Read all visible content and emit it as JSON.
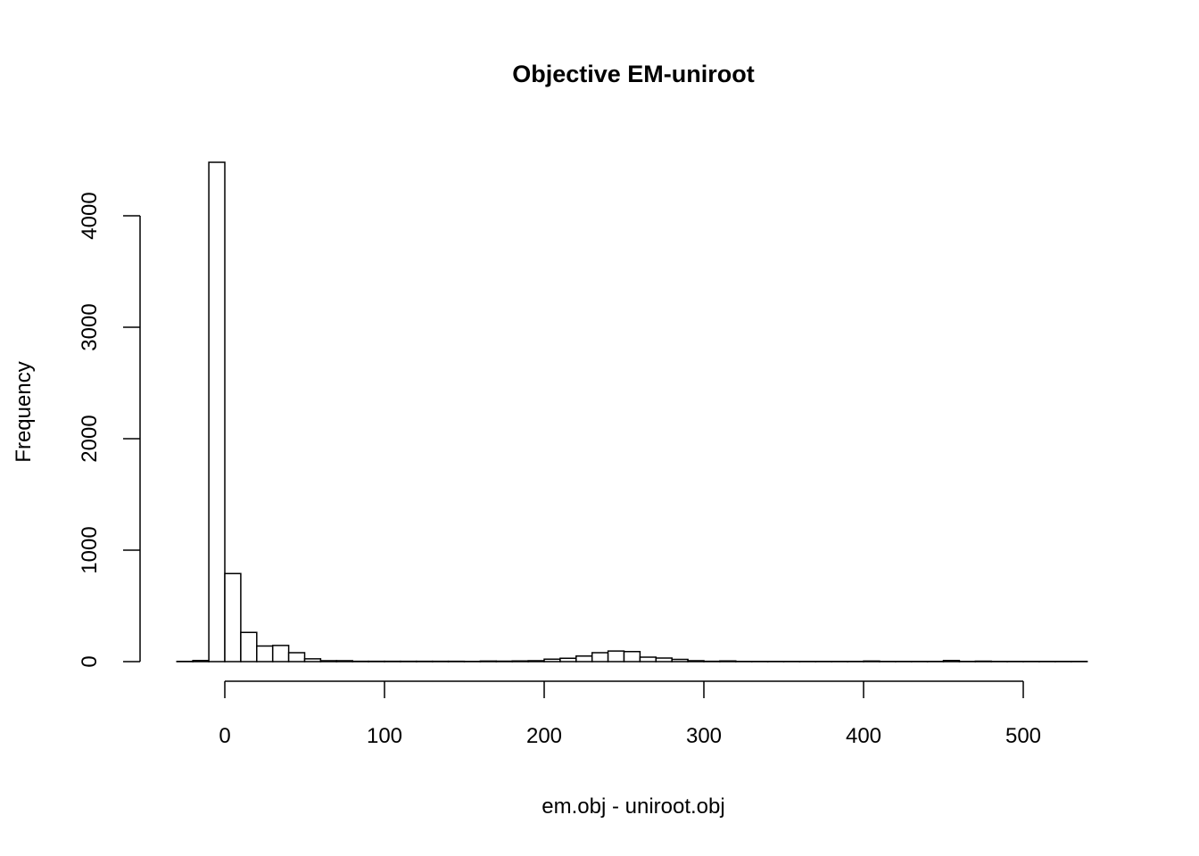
{
  "chart_data": {
    "type": "bar",
    "title": "Objective EM-uniroot",
    "xlabel": "em.obj - uniroot.obj",
    "ylabel": "Frequency",
    "bin_width": 10,
    "bin_start": -30,
    "counts": [
      2,
      10,
      4480,
      790,
      262,
      140,
      145,
      80,
      25,
      8,
      8,
      3,
      3,
      3,
      3,
      3,
      3,
      3,
      2,
      5,
      4,
      6,
      8,
      22,
      30,
      50,
      80,
      95,
      90,
      40,
      32,
      20,
      8,
      3,
      6,
      2,
      2,
      2,
      2,
      2,
      2,
      2,
      2,
      5,
      2,
      2,
      2,
      2,
      10,
      2,
      4,
      2,
      2,
      2,
      2,
      2,
      2
    ],
    "xlim": [
      -30,
      540
    ],
    "ylim": [
      0,
      4480
    ],
    "xticks": [
      "0",
      "100",
      "200",
      "300",
      "400",
      "500"
    ],
    "yticks": [
      "0",
      "1000",
      "2000",
      "3000",
      "4000"
    ],
    "grid": false
  }
}
